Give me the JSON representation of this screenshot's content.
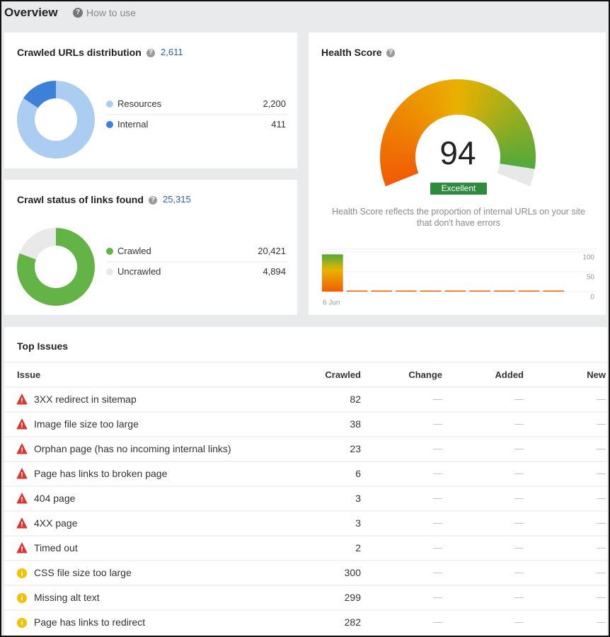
{
  "header": {
    "title": "Overview",
    "help_link": "How to use"
  },
  "crawled_urls": {
    "type": "pie",
    "title": "Crawled URLs distribution",
    "total": "2,611",
    "categories": [
      "Resources",
      "Internal"
    ],
    "values": [
      2200,
      411
    ],
    "value_labels": [
      "2,200",
      "411"
    ],
    "colors": [
      "#abcdf1",
      "#3d80d8"
    ]
  },
  "crawl_status": {
    "type": "pie",
    "title": "Crawl status of links found",
    "total": "25,315",
    "categories": [
      "Crawled",
      "Uncrawled"
    ],
    "values": [
      20421,
      4894
    ],
    "value_labels": [
      "20,421",
      "4,894"
    ],
    "colors": [
      "#63b347",
      "#e9e9e9"
    ]
  },
  "health_score": {
    "title": "Health Score",
    "score": 94,
    "rating": "Excellent",
    "description": "Health Score reflects the proportion of internal URLs on your site that don't have errors",
    "history": {
      "type": "bar",
      "x": [
        "6 Jun",
        null,
        null,
        null,
        null,
        null,
        null,
        null,
        null,
        null
      ],
      "values": [
        94,
        0,
        0,
        0,
        0,
        0,
        0,
        0,
        0,
        0
      ],
      "ylim": [
        0,
        100
      ],
      "yticks": [
        0,
        50,
        100
      ],
      "grid": true
    }
  },
  "top_issues": {
    "title": "Top Issues",
    "columns": [
      "Issue",
      "Crawled",
      "Change",
      "Added",
      "New"
    ],
    "rows": [
      {
        "severity": "error",
        "issue": "3XX redirect in sitemap",
        "crawled": 82,
        "change": "—",
        "added": "—",
        "new": "—"
      },
      {
        "severity": "error",
        "issue": "Image file size too large",
        "crawled": 38,
        "change": "—",
        "added": "—",
        "new": "—"
      },
      {
        "severity": "error",
        "issue": "Orphan page (has no incoming internal links)",
        "crawled": 23,
        "change": "—",
        "added": "—",
        "new": "—"
      },
      {
        "severity": "error",
        "issue": "Page has links to broken page",
        "crawled": 6,
        "change": "—",
        "added": "—",
        "new": "—"
      },
      {
        "severity": "error",
        "issue": "404 page",
        "crawled": 3,
        "change": "—",
        "added": "—",
        "new": "—"
      },
      {
        "severity": "error",
        "issue": "4XX page",
        "crawled": 3,
        "change": "—",
        "added": "—",
        "new": "—"
      },
      {
        "severity": "error",
        "issue": "Timed out",
        "crawled": 2,
        "change": "—",
        "added": "—",
        "new": "—"
      },
      {
        "severity": "warning",
        "issue": "CSS file size too large",
        "crawled": 300,
        "change": "—",
        "added": "—",
        "new": "—"
      },
      {
        "severity": "warning",
        "issue": "Missing alt text",
        "crawled": 299,
        "change": "—",
        "added": "—",
        "new": "—"
      },
      {
        "severity": "warning",
        "issue": "Page has links to redirect",
        "crawled": 282,
        "change": "—",
        "added": "—",
        "new": "—"
      }
    ]
  }
}
